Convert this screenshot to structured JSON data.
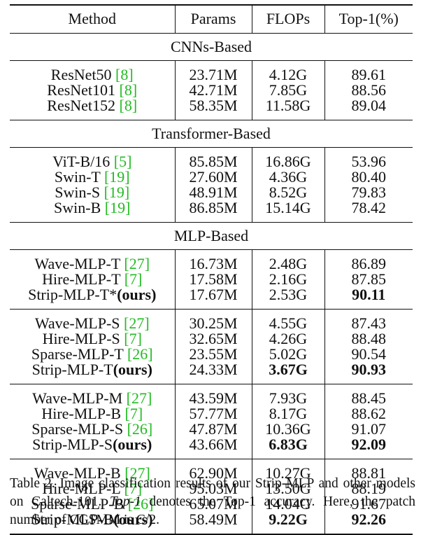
{
  "header": {
    "method": "Method",
    "params": "Params",
    "flops": "FLOPs",
    "top1": "Top-1(%)"
  },
  "sections": [
    {
      "title": "CNNs-Based",
      "groups": [
        [
          {
            "name": "ResNet50 ",
            "cite": "[8]",
            "params": "23.71M",
            "flops": "4.12G",
            "top1": "89.61"
          },
          {
            "name": "ResNet101 ",
            "cite": "[8]",
            "params": "42.71M",
            "flops": "7.85G",
            "top1": "88.56"
          },
          {
            "name": "ResNet152 ",
            "cite": "[8]",
            "params": "58.35M",
            "flops": "11.58G",
            "top1": "89.04"
          }
        ]
      ]
    },
    {
      "title": "Transformer-Based",
      "groups": [
        [
          {
            "name": "ViT-B/16 ",
            "cite": "[5]",
            "params": "85.85M",
            "flops": "16.86G",
            "top1": "53.96"
          },
          {
            "name": "Swin-T ",
            "cite": "[19]",
            "params": "27.60M",
            "flops": "4.36G",
            "top1": "80.40"
          },
          {
            "name": "Swin-S ",
            "cite": "[19]",
            "params": "48.91M",
            "flops": "8.52G",
            "top1": "79.83"
          },
          {
            "name": "Swin-B ",
            "cite": "[19]",
            "params": "86.85M",
            "flops": "15.14G",
            "top1": "78.42"
          }
        ]
      ]
    },
    {
      "title": "MLP-Based",
      "groups": [
        [
          {
            "name": "Wave-MLP-T ",
            "cite": "[27]",
            "params": "16.73M",
            "flops": "2.48G",
            "top1": "86.89"
          },
          {
            "name": "Hire-MLP-T ",
            "cite": "[7]",
            "params": "17.58M",
            "flops": "2.16G",
            "top1": "87.85"
          },
          {
            "name": "Strip-MLP-T*",
            "ours": "(ours)",
            "params": "17.67M",
            "flops": "2.53G",
            "top1": "90.11",
            "bold_top1": true
          }
        ],
        [
          {
            "name": "Wave-MLP-S ",
            "cite": "[27]",
            "params": "30.25M",
            "flops": "4.55G",
            "top1": "87.43"
          },
          {
            "name": "Hire-MLP-S ",
            "cite": "[7]",
            "params": "32.65M",
            "flops": "4.26G",
            "top1": "88.48"
          },
          {
            "name": "Sparse-MLP-T ",
            "cite": "[26]",
            "params": "23.55M",
            "flops": "5.02G",
            "top1": "90.54"
          },
          {
            "name": "Strip-MLP-T",
            "ours": "(ours)",
            "params": "24.33M",
            "flops": "3.67G",
            "top1": "90.93",
            "bold_flops": true,
            "bold_top1": true
          }
        ],
        [
          {
            "name": "Wave-MLP-M ",
            "cite": "[27]",
            "params": "43.59M",
            "flops": "7.93G",
            "top1": "88.45"
          },
          {
            "name": "Hire-MLP-B ",
            "cite": "[7]",
            "params": "57.77M",
            "flops": "8.17G",
            "top1": "88.62"
          },
          {
            "name": "Sparse-MLP-S ",
            "cite": "[26]",
            "params": "47.87M",
            "flops": "10.36G",
            "top1": "91.07"
          },
          {
            "name": "Strip-MLP-S",
            "ours": "(ours)",
            "params": "43.66M",
            "flops": "6.83G",
            "top1": "92.09",
            "bold_flops": true,
            "bold_top1": true
          }
        ],
        [
          {
            "name": "Wave-MLP-B ",
            "cite": "[27]",
            "params": "62.90M",
            "flops": "10.27G",
            "top1": "88.81"
          },
          {
            "name": "Hire-MLP-L ",
            "cite": "[7]",
            "params": "95.03M",
            "flops": "13.50G",
            "top1": "88.19"
          },
          {
            "name": "Sparse-MLP-B ",
            "cite": "[26]",
            "params": "65.07M",
            "flops": "14.04G",
            "top1": "91.67"
          },
          {
            "name": "Strip-MLP-B",
            "ours": "(ours)",
            "params": "58.49M",
            "flops": "9.22G",
            "top1": "92.26",
            "bold_flops": true,
            "bold_top1": true
          }
        ]
      ]
    }
  ],
  "caption": {
    "part1": "Table 2. Image classification results of our Strip-MLP and other models on Caltech-101. ",
    "italic": "Top-1",
    "part2": " denotes the Top-1 accuracy. Here, the patch number of CGSMM is C/2."
  }
}
